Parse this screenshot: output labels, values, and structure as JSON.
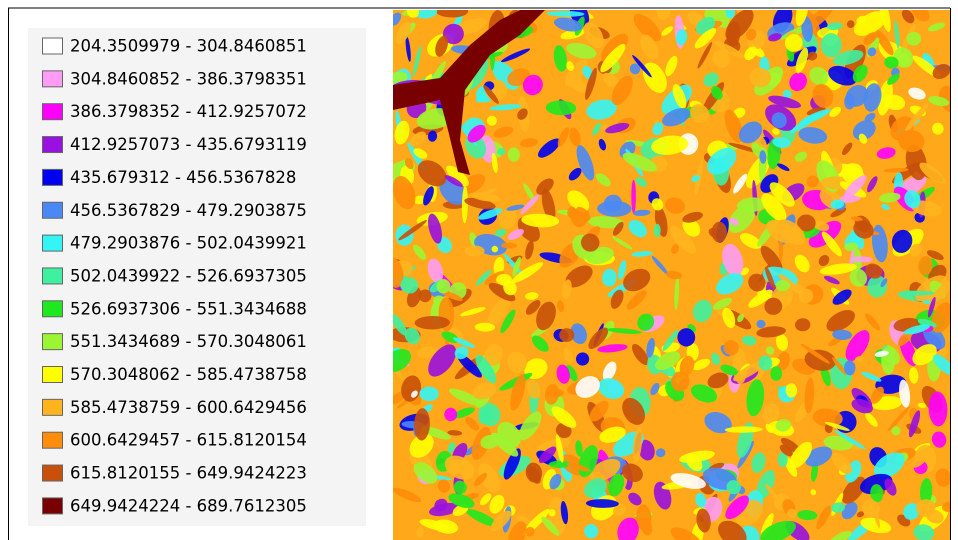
{
  "legend": {
    "items": [
      {
        "label": "204.3509979 - 304.8460851",
        "color": "#ffffff"
      },
      {
        "label": "304.8460852 - 386.3798351",
        "color": "#ff9cf5"
      },
      {
        "label": "386.3798352 - 412.9257072",
        "color": "#ff00ff"
      },
      {
        "label": "412.9257073 - 435.6793119",
        "color": "#9a10e0"
      },
      {
        "label": "435.679312 - 456.5367828",
        "color": "#0000f0"
      },
      {
        "label": "456.5367829 - 479.2903875",
        "color": "#4a88f5"
      },
      {
        "label": "479.2903876 - 502.0439921",
        "color": "#33f5f5"
      },
      {
        "label": "502.0439922 - 526.6937305",
        "color": "#3ef0a0"
      },
      {
        "label": "526.6937306 - 551.3434688",
        "color": "#1ee81e"
      },
      {
        "label": "551.3434689 - 570.3048061",
        "color": "#9cf532"
      },
      {
        "label": "570.3048062 - 585.4738758",
        "color": "#ffff00"
      },
      {
        "label": "585.4738759 - 600.6429456",
        "color": "#ffb41e"
      },
      {
        "label": "600.6429457 - 615.8120154",
        "color": "#ff8c0a"
      },
      {
        "label": "615.8120155 - 649.9424223",
        "color": "#c8500a"
      },
      {
        "label": "649.9424224 - 689.7612305",
        "color": "#780000"
      }
    ]
  }
}
